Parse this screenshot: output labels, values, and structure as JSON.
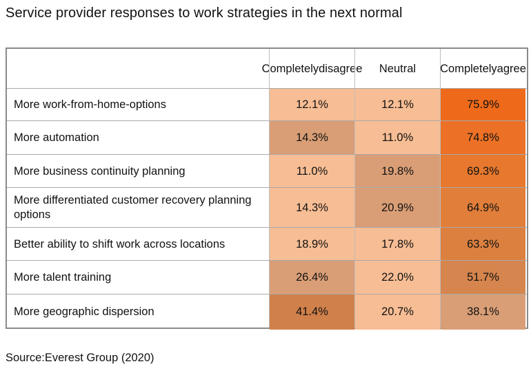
{
  "title": "Service provider responses to work strategies in the next normal",
  "source": "Source:Everest Group (2020)",
  "colors": {
    "low": "#f7bd94",
    "mid": "#d99e76",
    "high_mid": "#d0804a",
    "accent": "#ee6a1a",
    "border": "#8a8a8a"
  },
  "chart_data": {
    "type": "table",
    "columns": [
      "Completely disagree",
      "Neutral",
      "Completely agree"
    ],
    "header_lines": [
      [
        "Completely",
        "disagree"
      ],
      [
        "Neutral"
      ],
      [
        "Completely",
        "agree"
      ]
    ],
    "rows": [
      {
        "label": "More work-from-home-options",
        "values": [
          "12.1%",
          "12.1%",
          "75.9%"
        ],
        "shades": [
          "low",
          "low",
          "accent"
        ]
      },
      {
        "label": "More automation",
        "values": [
          "14.3%",
          "11.0%",
          "74.8%"
        ],
        "shades": [
          "mid",
          "low",
          "accent2"
        ]
      },
      {
        "label": "More business continuity planning",
        "values": [
          "11.0%",
          "19.8%",
          "69.3%"
        ],
        "shades": [
          "low",
          "mid",
          "orange3"
        ]
      },
      {
        "label": "More differentiated customer recovery planning options",
        "values": [
          "14.3%",
          "20.9%",
          "64.9%"
        ],
        "shades": [
          "low",
          "mid",
          "orange4"
        ]
      },
      {
        "label": "Better ability to shift work across locations",
        "values": [
          "18.9%",
          "17.8%",
          "63.3%"
        ],
        "shades": [
          "low",
          "low",
          "orange5"
        ]
      },
      {
        "label": "More talent training",
        "values": [
          "26.4%",
          "22.0%",
          "51.7%"
        ],
        "shades": [
          "mid",
          "low",
          "orange6"
        ]
      },
      {
        "label": "More geographic dispersion",
        "values": [
          "41.4%",
          "20.7%",
          "38.1%"
        ],
        "shades": [
          "high_mid",
          "low",
          "mid"
        ]
      }
    ],
    "shade_colors": {
      "low": "#f7bd94",
      "mid": "#d99e76",
      "high_mid": "#d0804a",
      "accent": "#ee6a1a",
      "accent2": "#ec7126",
      "orange3": "#e7782e",
      "orange4": "#e17e3a",
      "orange5": "#dc8040",
      "orange6": "#d5854d"
    }
  }
}
